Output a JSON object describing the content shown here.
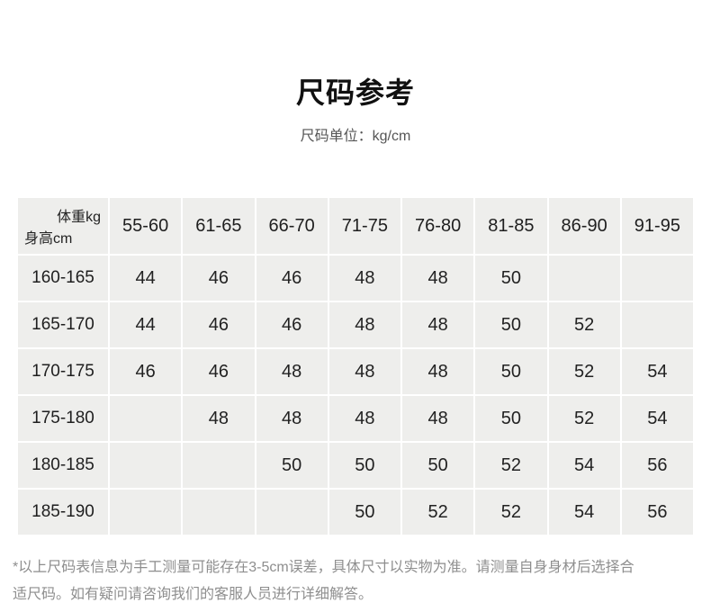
{
  "page": {
    "title": "尺码参考",
    "subtitle": "尺码单位：kg/cm",
    "footnote": "*以上尺码表信息为手工测量可能存在3-5cm误差，具体尺寸以实物为准。请测量自身身材后选择合适尺码。如有疑问请咨询我们的客服人员进行详细解答。"
  },
  "chart_data": {
    "type": "table",
    "title": "尺码参考",
    "unit": "kg/cm",
    "column_axis_label": "体重kg",
    "row_axis_label": "身高cm",
    "columns": [
      "55-60",
      "61-65",
      "66-70",
      "71-75",
      "76-80",
      "81-85",
      "86-90",
      "91-95"
    ],
    "rows": [
      {
        "height": "160-165",
        "sizes": [
          "44",
          "46",
          "46",
          "48",
          "48",
          "50",
          "",
          ""
        ]
      },
      {
        "height": "165-170",
        "sizes": [
          "44",
          "46",
          "46",
          "48",
          "48",
          "50",
          "52",
          ""
        ]
      },
      {
        "height": "170-175",
        "sizes": [
          "46",
          "46",
          "48",
          "48",
          "48",
          "50",
          "52",
          "54"
        ]
      },
      {
        "height": "175-180",
        "sizes": [
          "",
          "48",
          "48",
          "48",
          "48",
          "50",
          "52",
          "54"
        ]
      },
      {
        "height": "180-185",
        "sizes": [
          "",
          "",
          "50",
          "50",
          "50",
          "52",
          "54",
          "56"
        ]
      },
      {
        "height": "185-190",
        "sizes": [
          "",
          "",
          "",
          "50",
          "52",
          "52",
          "54",
          "56"
        ]
      }
    ]
  },
  "colors": {
    "cell_background": "#eeeeec",
    "corner_background": "#f2f2f0",
    "diagonal_line": "#d7d7d5",
    "value_text": "#222222",
    "note_text": "#8e8e8e"
  }
}
